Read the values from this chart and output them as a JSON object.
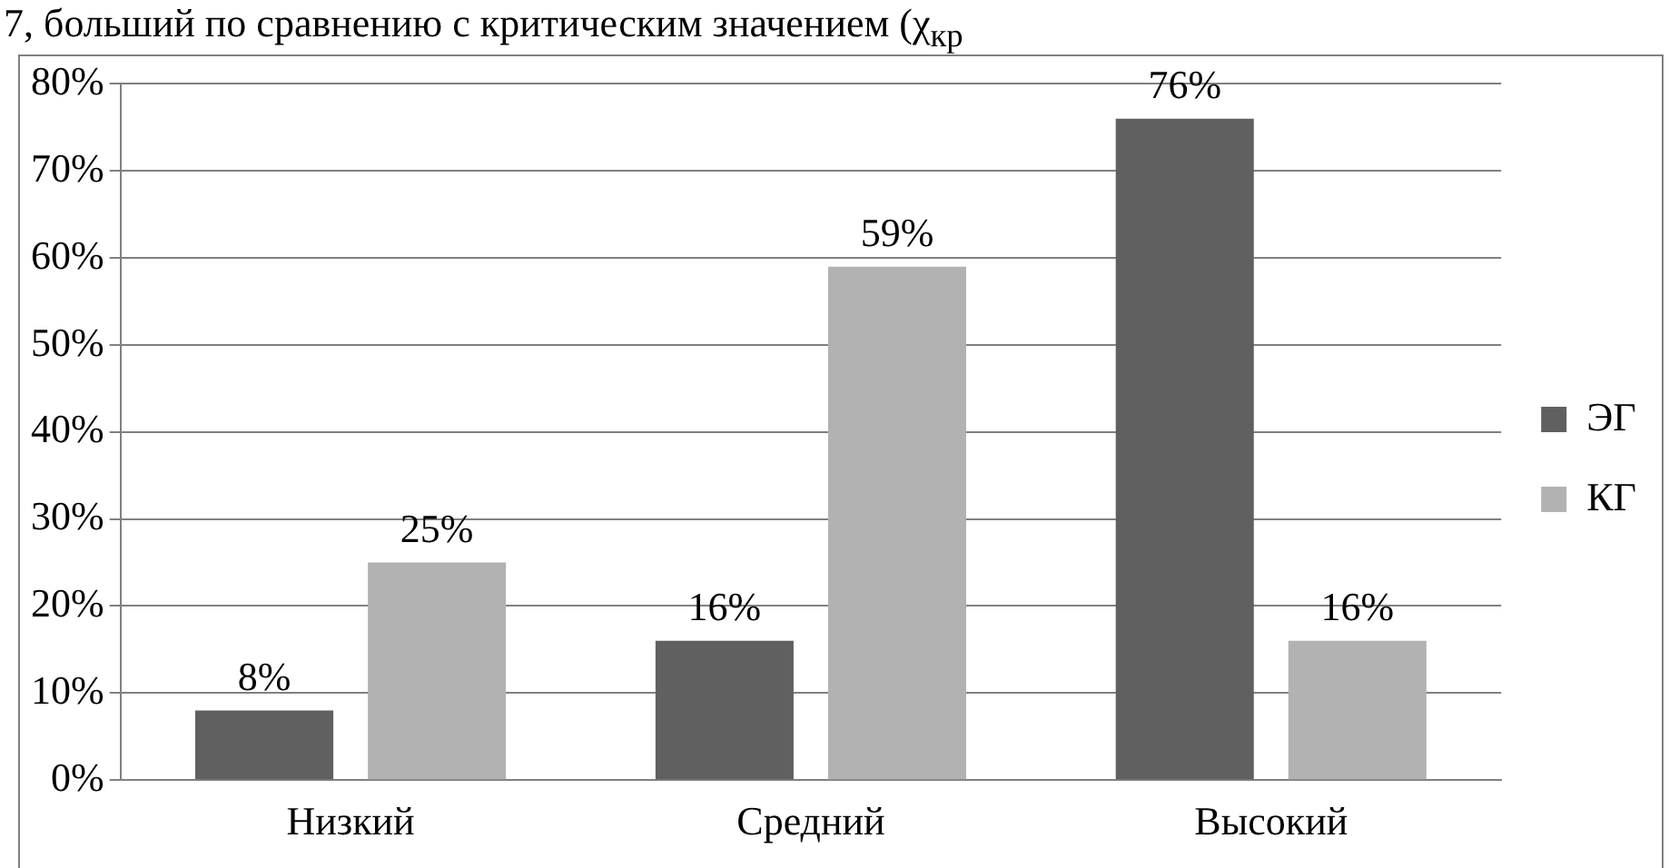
{
  "chart_data": {
    "type": "bar",
    "annotations": [
      "7, больший по сравнению с критическим значением (χ$_{кр}$"
    ],
    "categories": [
      "Низкий",
      "Средний",
      "Высокий"
    ],
    "series": [
      {
        "name": "ЭГ",
        "color": "#606060",
        "values": [
          8,
          16,
          76
        ],
        "value_labels": [
          "8%",
          "16%",
          "76%"
        ]
      },
      {
        "name": "КГ",
        "color": "#b2b2b2",
        "values": [
          25,
          59,
          16
        ],
        "value_labels": [
          "25%",
          "59%",
          "16%"
        ]
      }
    ],
    "ylim": [
      0,
      80
    ],
    "yticks": [
      {
        "value": 0,
        "label": "0%"
      },
      {
        "value": 10,
        "label": "10%"
      },
      {
        "value": 20,
        "label": "20%"
      },
      {
        "value": 30,
        "label": "30%"
      },
      {
        "value": 40,
        "label": "40%"
      },
      {
        "value": 50,
        "label": "50%"
      },
      {
        "value": 60,
        "label": "60%"
      },
      {
        "value": 70,
        "label": "70%"
      },
      {
        "value": 80,
        "label": "80%"
      }
    ],
    "grid": "y",
    "legend": "right"
  }
}
